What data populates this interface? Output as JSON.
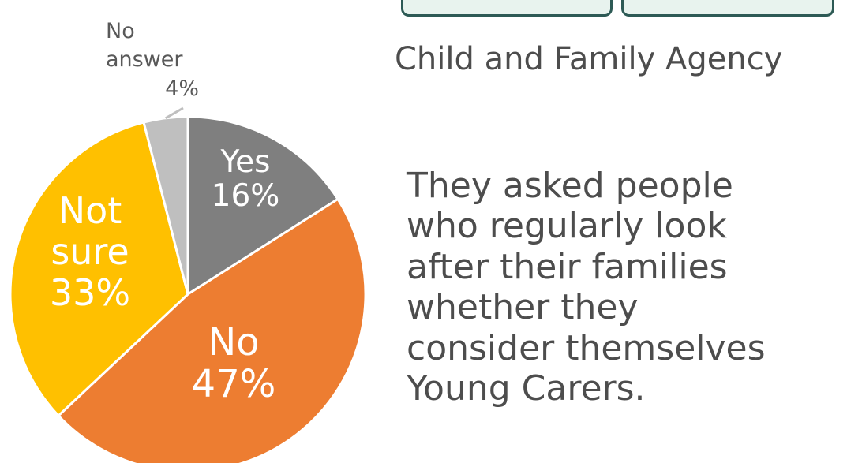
{
  "header": {
    "agency": "Child and Family Agency"
  },
  "caption_lines": [
    "They asked people",
    "who regularly look",
    "after their families",
    "whether they",
    "consider themselves",
    "Young Carers."
  ],
  "chart_data": {
    "type": "pie",
    "title": "",
    "slices": [
      {
        "name": "Yes",
        "value": 16,
        "label": [
          "Yes",
          "16%"
        ],
        "color": "#7f7f7f",
        "text_color": "#ffffff"
      },
      {
        "name": "No",
        "value": 47,
        "label": [
          "No",
          "47%"
        ],
        "color": "#ed7d31",
        "text_color": "#ffffff"
      },
      {
        "name": "Not sure",
        "value": 33,
        "label": [
          "Not",
          "sure",
          "33%"
        ],
        "color": "#ffc000",
        "text_color": "#ffffff"
      },
      {
        "name": "No answer",
        "value": 4,
        "label": [
          "No",
          "answer",
          "4%"
        ],
        "color": "#bfbfbf",
        "text_color": "#595959"
      }
    ],
    "start": "12 o'clock",
    "direction": "clockwise",
    "legend": "none"
  }
}
